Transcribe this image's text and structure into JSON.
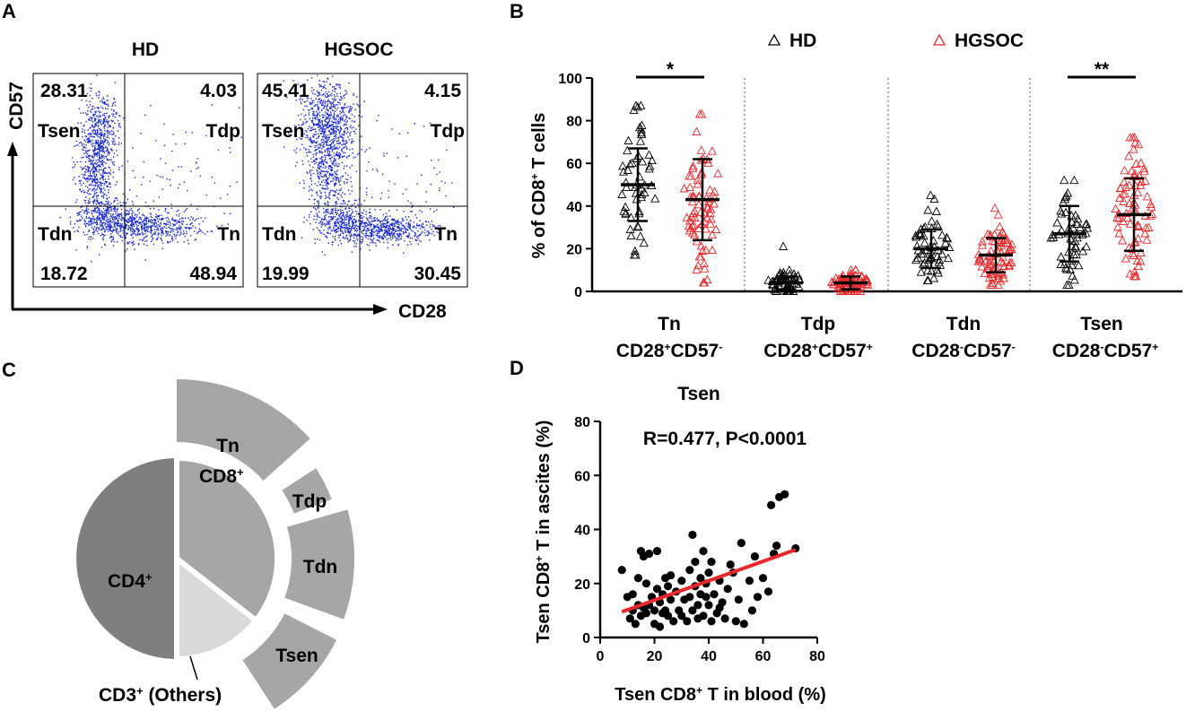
{
  "panels": {
    "a": "A",
    "b": "B",
    "c": "C",
    "d": "D"
  },
  "panel_a": {
    "left": {
      "title": "HD",
      "tl": "28.31",
      "tr": "4.03",
      "bl": "18.72",
      "br": "48.94"
    },
    "right": {
      "title": "HGSOC",
      "tl": "45.41",
      "tr": "4.15",
      "bl": "19.99",
      "br": "30.45"
    },
    "quadrants": {
      "tsen": "Tsen",
      "tdp": "Tdp",
      "tdn": "Tdn",
      "tn": "Tn"
    },
    "x_axis": "CD28",
    "y_axis": "CD57",
    "dot_color": "#1a2bd6"
  },
  "panel_c": {
    "inner": {
      "cd4": "CD4",
      "cd8": "CD8",
      "sup": "+"
    },
    "outer": {
      "tn": "Tn",
      "tdp": "Tdp",
      "tdn": "Tdn",
      "tsen": "Tsen"
    },
    "others_label": "CD3",
    "others_suffix": " (Others)",
    "colors": {
      "cd4": "#7f7f7f",
      "cd8": "#a6a6a6",
      "others": "#d9d9d9",
      "outer": "#a6a6a6"
    }
  },
  "chart_data": [
    {
      "type": "scatter",
      "title": "",
      "ylabel": "% of CD8+ T cells",
      "ylim": [
        0,
        100
      ],
      "yticks": [
        0,
        20,
        40,
        60,
        80,
        100
      ],
      "legend": [
        "HD",
        "HGSOC"
      ],
      "categories": [
        {
          "name": "Tn",
          "sub": "CD28+CD57-"
        },
        {
          "name": "Tdp",
          "sub": "CD28+CD57+"
        },
        {
          "name": "Tdn",
          "sub": "CD28-CD57-"
        },
        {
          "name": "Tsen",
          "sub": "CD28-CD57+"
        }
      ],
      "series": [
        {
          "name": "HD",
          "color": "#000000",
          "mean": [
            50,
            4,
            20,
            27
          ],
          "sd": [
            17,
            3,
            9,
            13
          ],
          "range": [
            [
              17,
              87
            ],
            [
              0,
              21
            ],
            [
              5,
              45
            ],
            [
              3,
              52
            ]
          ]
        },
        {
          "name": "HGSOC",
          "color": "#e8282b",
          "mean": [
            43,
            4,
            17,
            36
          ],
          "sd": [
            19,
            3,
            8,
            17
          ],
          "range": [
            [
              4,
              83
            ],
            [
              0,
              10
            ],
            [
              3,
              39
            ],
            [
              7,
              72
            ]
          ]
        }
      ],
      "significance": [
        {
          "category": "Tn",
          "label": "*"
        },
        {
          "category": "Tsen",
          "label": "**"
        }
      ]
    },
    {
      "type": "scatter",
      "title": "Tsen",
      "annotation": "R=0.477, P<0.0001",
      "xlabel": "Tsen CD8+ T in blood (%)",
      "ylabel": "Tsen CD8+ T in ascites (%)",
      "xlim": [
        0,
        80
      ],
      "ylim": [
        0,
        80
      ],
      "xticks": [
        0,
        20,
        40,
        60,
        80
      ],
      "yticks": [
        0,
        20,
        40,
        60,
        80
      ],
      "fit_line": {
        "x": [
          8,
          72
        ],
        "y": [
          9.5,
          32.5
        ],
        "color": "#e8282b"
      },
      "x": [
        8,
        10,
        11,
        12,
        12,
        13,
        14,
        14,
        15,
        15,
        16,
        16,
        17,
        17,
        18,
        18,
        19,
        20,
        20,
        21,
        21,
        22,
        22,
        23,
        23,
        24,
        24,
        25,
        25,
        26,
        26,
        27,
        28,
        29,
        30,
        30,
        31,
        32,
        33,
        33,
        34,
        34,
        35,
        35,
        36,
        36,
        37,
        37,
        38,
        38,
        39,
        39,
        40,
        40,
        41,
        41,
        42,
        43,
        44,
        44,
        45,
        46,
        47,
        48,
        49,
        50,
        51,
        52,
        53,
        55,
        56,
        57,
        58,
        60,
        62,
        63,
        64,
        65,
        66,
        68,
        72
      ],
      "y": [
        25,
        15,
        7,
        16,
        10,
        5,
        12,
        22,
        8,
        32,
        30,
        11,
        9,
        20,
        12,
        31,
        15,
        10,
        5,
        32,
        18,
        4,
        13,
        16,
        9,
        22,
        10,
        19,
        8,
        14,
        23,
        6,
        17,
        10,
        21,
        8,
        14,
        6,
        15,
        25,
        10,
        38,
        19,
        28,
        12,
        7,
        16,
        22,
        8,
        32,
        15,
        20,
        12,
        24,
        6,
        28,
        16,
        9,
        21,
        11,
        13,
        7,
        18,
        27,
        24,
        6,
        14,
        35,
        5,
        21,
        10,
        30,
        15,
        22,
        17,
        49,
        31,
        34,
        52,
        53,
        33
      ]
    }
  ]
}
